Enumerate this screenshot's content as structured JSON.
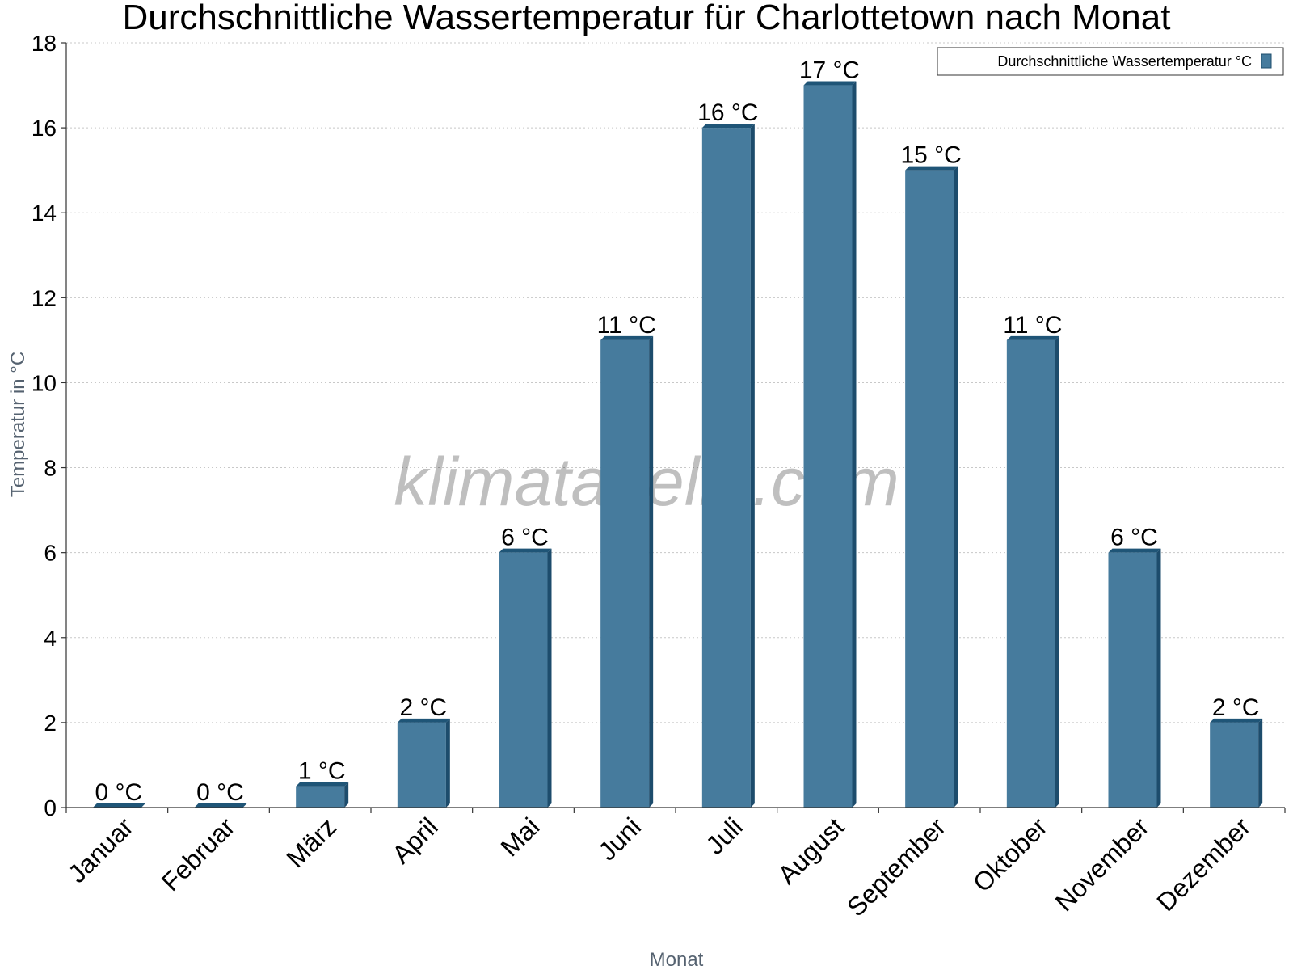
{
  "title": "Durchschnittliche Wassertemperatur für Charlottetown nach Monat",
  "watermark": "klimatabelle.com",
  "colors": {
    "bar_front": "#467b9d",
    "bar_top": "#1f5577",
    "bar_side": "#1d4c6c",
    "axis": "#333333",
    "grid": "#c8c8c8",
    "axis_label": "#556270"
  },
  "chart_data": {
    "type": "bar",
    "title": "Durchschnittliche Wassertemperatur für Charlottetown nach Monat",
    "xlabel": "Monat",
    "ylabel": "Temperatur in °C",
    "ylim": [
      0,
      18
    ],
    "yticks": [
      0,
      2,
      4,
      6,
      8,
      10,
      12,
      14,
      16,
      18
    ],
    "grid": true,
    "legend_position": "top-right",
    "categories": [
      "Januar",
      "Februar",
      "März",
      "April",
      "Mai",
      "Juni",
      "Juli",
      "August",
      "September",
      "Oktober",
      "November",
      "Dezember"
    ],
    "series": [
      {
        "name": "Durchschnittliche Wassertemperatur °C",
        "values": [
          0,
          0,
          0.5,
          2,
          6,
          11,
          16,
          17,
          15,
          11,
          6,
          2
        ],
        "labels": [
          "0 °C",
          "0 °C",
          "1 °C",
          "2 °C",
          "6 °C",
          "11 °C",
          "16 °C",
          "17 °C",
          "15 °C",
          "11 °C",
          "6 °C",
          "2 °C"
        ]
      }
    ]
  }
}
